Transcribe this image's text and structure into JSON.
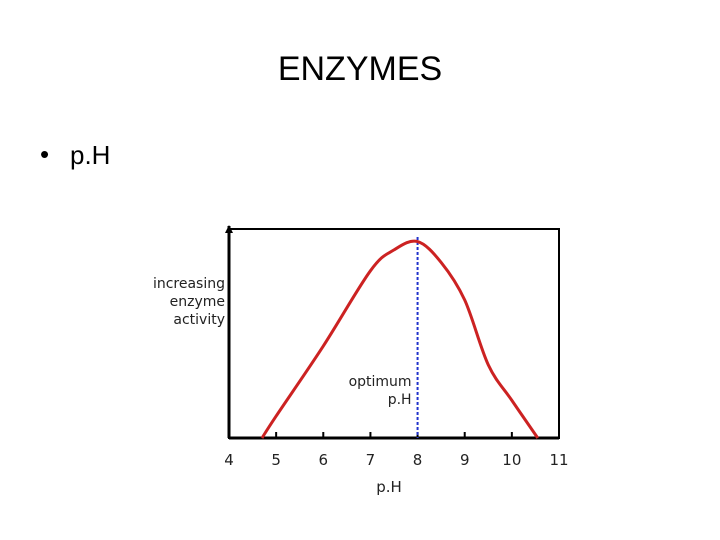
{
  "slide": {
    "title": "ENZYMES",
    "bullet": "p.H"
  },
  "chart_data": {
    "type": "line",
    "x": [
      4.7,
      5,
      6,
      7,
      7.5,
      8,
      8.5,
      9,
      9.5,
      10,
      10.55
    ],
    "values": [
      0,
      10.5,
      44,
      80,
      90,
      94,
      84,
      66,
      35,
      18,
      0
    ],
    "color": "#cc2222",
    "xlim": [
      4,
      11
    ],
    "xticks": [
      4,
      5,
      6,
      7,
      8,
      9,
      10,
      11
    ],
    "ylim": [
      0,
      100
    ],
    "x_label": "p.H",
    "y_label": [
      "increasing",
      "enzyme",
      "activity"
    ],
    "optimum": {
      "x": 8,
      "label": [
        "optimum",
        "p.H"
      ],
      "color": "#2233cc"
    }
  }
}
